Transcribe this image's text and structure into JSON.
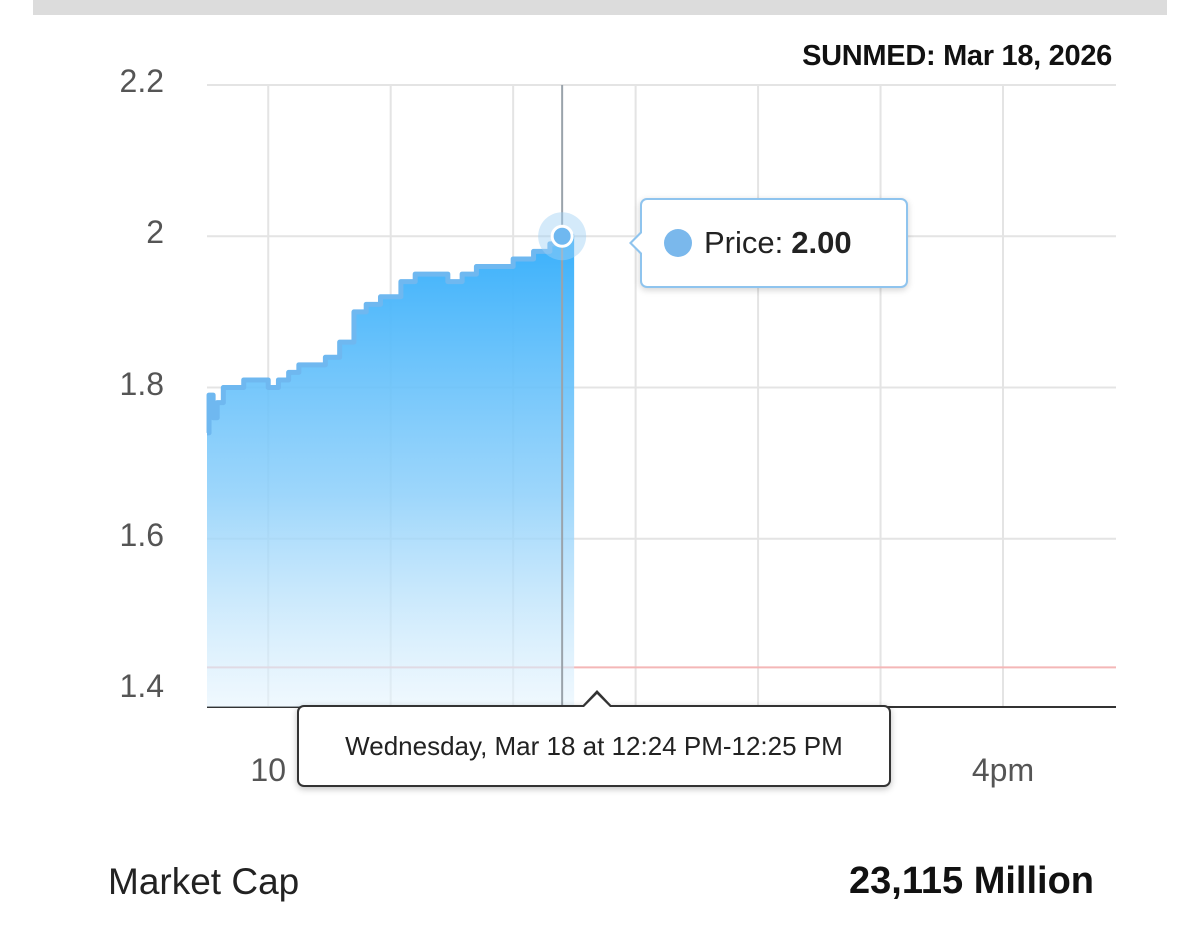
{
  "chart_data": {
    "type": "area",
    "title": "SUNMED: Mar 18, 2026",
    "y_ticks": [
      "2.2",
      "2",
      "1.8",
      "1.6",
      "1.4"
    ],
    "ylim": [
      1.4,
      2.2
    ],
    "x_ticks_visible": [
      "10",
      "4pm"
    ],
    "grid": true,
    "series": [
      {
        "x": [
          "09:30",
          "09:31",
          "09:33",
          "09:35",
          "09:38",
          "09:42",
          "09:48",
          "09:55",
          "10:00",
          "10:05",
          "10:10",
          "10:15",
          "10:20",
          "10:28",
          "10:35",
          "10:42",
          "10:48",
          "10:55",
          "11:00",
          "11:05",
          "11:12",
          "11:18",
          "11:22",
          "11:28",
          "11:35",
          "11:42",
          "11:48",
          "11:55",
          "12:00",
          "12:05",
          "12:10",
          "12:15",
          "12:18",
          "12:20",
          "12:22",
          "12:24"
        ],
        "y": [
          1.74,
          1.79,
          1.76,
          1.78,
          1.8,
          1.8,
          1.81,
          1.81,
          1.8,
          1.81,
          1.82,
          1.83,
          1.83,
          1.84,
          1.86,
          1.9,
          1.91,
          1.92,
          1.92,
          1.94,
          1.95,
          1.95,
          1.95,
          1.94,
          1.95,
          1.96,
          1.96,
          1.96,
          1.97,
          1.97,
          1.98,
          1.98,
          1.99,
          1.99,
          2.0,
          2.0
        ],
        "color": "#3cb1fb"
      }
    ],
    "reference_line": {
      "value": 1.43,
      "color": "#f4b7b7"
    },
    "cursor_time": "12:24"
  },
  "tooltip": {
    "price_label": "Price:",
    "price_value": "2.00",
    "dot_color": "#7ab8ec",
    "time_text": "Wednesday, Mar 18 at 12:24 PM-12:25 PM"
  },
  "stats": {
    "market_cap_label": "Market Cap",
    "market_cap_value": "23,115 Million"
  }
}
